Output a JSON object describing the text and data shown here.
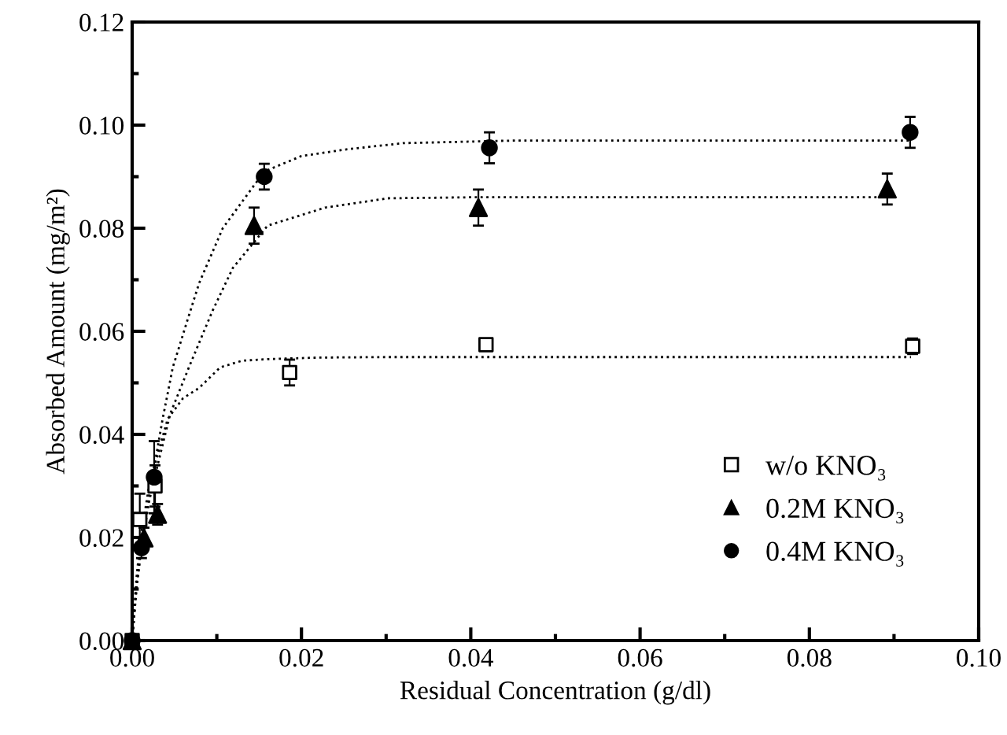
{
  "chart_data": {
    "type": "scatter",
    "xlabel": "Residual Concentration (g/dl)",
    "ylabel": "Absorbed Amount (mg/m²)",
    "xlim": [
      0,
      0.1
    ],
    "ylim": [
      0,
      0.12
    ],
    "xticks": [
      {
        "value": 0,
        "label": "0.00"
      },
      {
        "value": 0.01,
        "label": null
      },
      {
        "value": 0.02,
        "label": "0.02"
      },
      {
        "value": 0.03,
        "label": null
      },
      {
        "value": 0.04,
        "label": "0.04"
      },
      {
        "value": 0.05,
        "label": null
      },
      {
        "value": 0.06,
        "label": "0.06"
      },
      {
        "value": 0.07,
        "label": null
      },
      {
        "value": 0.08,
        "label": "0.08"
      },
      {
        "value": 0.09,
        "label": null
      },
      {
        "value": 0.1,
        "label": "0.10"
      }
    ],
    "yticks": [
      {
        "value": 0,
        "label": "0.00"
      },
      {
        "value": 0.01,
        "label": null
      },
      {
        "value": 0.02,
        "label": "0.02"
      },
      {
        "value": 0.03,
        "label": null
      },
      {
        "value": 0.04,
        "label": "0.04"
      },
      {
        "value": 0.05,
        "label": null
      },
      {
        "value": 0.06,
        "label": "0.06"
      },
      {
        "value": 0.07,
        "label": null
      },
      {
        "value": 0.08,
        "label": "0.08"
      },
      {
        "value": 0.09,
        "label": null
      },
      {
        "value": 0.1,
        "label": "0.10"
      },
      {
        "value": 0.11,
        "label": null
      },
      {
        "value": 0.12,
        "label": "0.12"
      }
    ],
    "grid": false,
    "legend": "bottom right",
    "series": [
      {
        "type": "line",
        "color": "#000000",
        "line_style": "dotted",
        "marker": "none",
        "x": [
          0,
          0.0005,
          0.001,
          0.002,
          0.003,
          0.0042,
          0.006,
          0.0079,
          0.0104,
          0.013,
          0.016,
          0.022,
          0.03,
          0.05,
          0.092
        ],
        "values": [
          0,
          0.012,
          0.02,
          0.03,
          0.036,
          0.043,
          0.047,
          0.049,
          0.053,
          0.0543,
          0.0546,
          0.0549,
          0.055,
          0.055,
          0.055
        ]
      },
      {
        "type": "line",
        "color": "#000000",
        "line_style": "dotted",
        "marker": "none",
        "x": [
          0,
          0.0005,
          0.001,
          0.002,
          0.003,
          0.0045,
          0.0067,
          0.0095,
          0.0119,
          0.016,
          0.0228,
          0.0302,
          0.04,
          0.06,
          0.09
        ],
        "values": [
          0,
          0.01,
          0.017,
          0.027,
          0.034,
          0.044,
          0.053,
          0.064,
          0.0723,
          0.0805,
          0.084,
          0.0858,
          0.086,
          0.086,
          0.086
        ]
      },
      {
        "type": "line",
        "color": "#000000",
        "line_style": "dotted",
        "marker": "none",
        "x": [
          0,
          0.0005,
          0.001,
          0.002,
          0.0036,
          0.0048,
          0.0065,
          0.0079,
          0.0107,
          0.0156,
          0.02,
          0.0253,
          0.032,
          0.045,
          0.06,
          0.092
        ],
        "values": [
          0,
          0.01,
          0.017,
          0.028,
          0.043,
          0.053,
          0.062,
          0.0693,
          0.08,
          0.091,
          0.094,
          0.0953,
          0.0965,
          0.097,
          0.097,
          0.097
        ]
      },
      {
        "name": "w/o KNO₃",
        "marker": "square",
        "color": "#000000",
        "x": [
          0,
          0.0009,
          0.0027,
          0.0186,
          0.0418,
          0.0922
        ],
        "values": [
          0,
          0.0235,
          0.03,
          0.052,
          0.0574,
          0.0571
        ],
        "errors": [
          null,
          0.005,
          0.004,
          0.0025,
          0.001,
          0.0015
        ]
      },
      {
        "name": "0.2M KNO₃",
        "marker": "triangle",
        "color": "#000000",
        "x": [
          0,
          0.0014,
          0.003,
          0.0144,
          0.0409,
          0.0892
        ],
        "values": [
          0,
          0.0199,
          0.0245,
          0.0805,
          0.084,
          0.0876
        ],
        "errors": [
          null,
          0.002,
          0.002,
          0.0035,
          0.0035,
          0.003
        ]
      },
      {
        "name": "0.4M KNO₃",
        "marker": "circle",
        "color": "#000000",
        "x": [
          0,
          0.0011,
          0.0026,
          0.0156,
          0.0422,
          0.0919
        ],
        "values": [
          0,
          0.018,
          0.0317,
          0.09,
          0.0956,
          0.0986
        ],
        "errors": [
          null,
          0.002,
          0.007,
          0.0025,
          0.003,
          0.003
        ]
      }
    ]
  }
}
